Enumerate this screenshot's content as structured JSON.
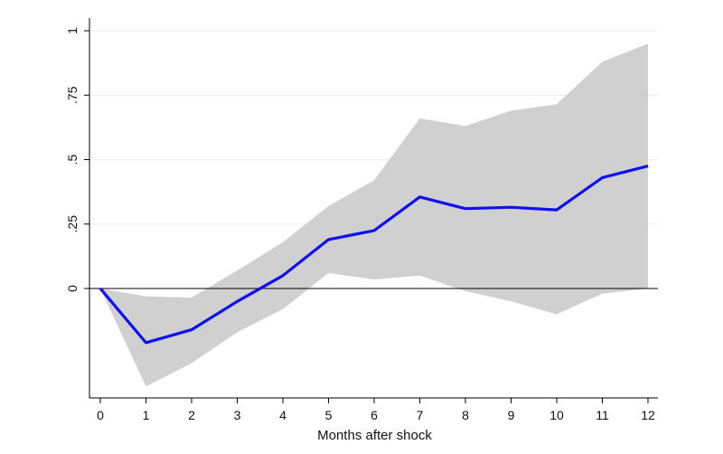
{
  "chart_data": {
    "type": "line",
    "title": "",
    "xlabel": "Months after shock",
    "ylabel": "",
    "x": [
      0,
      1,
      2,
      3,
      4,
      5,
      6,
      7,
      8,
      9,
      10,
      11,
      12
    ],
    "xlim": [
      0,
      12
    ],
    "ylim": [
      -0.43,
      1.05
    ],
    "x_ticks": [
      0,
      1,
      2,
      3,
      4,
      5,
      6,
      7,
      8,
      9,
      10,
      11,
      12
    ],
    "y_ticks": [
      0,
      0.25,
      0.5,
      0.75,
      1
    ],
    "y_tick_labels": [
      "0",
      ".25",
      ".5",
      ".75",
      "1"
    ],
    "series": [
      {
        "values": [
          0.0,
          -0.21,
          -0.16,
          -0.05,
          0.05,
          0.19,
          0.225,
          0.355,
          0.31,
          0.315,
          0.305,
          0.43,
          0.475
        ],
        "color": "#1010ee"
      }
    ],
    "band": {
      "lower": [
        0.0,
        -0.38,
        -0.29,
        -0.17,
        -0.08,
        0.06,
        0.035,
        0.05,
        -0.01,
        -0.05,
        -0.1,
        -0.02,
        0.0
      ],
      "upper": [
        0.0,
        -0.03,
        -0.035,
        0.07,
        0.18,
        0.32,
        0.42,
        0.66,
        0.63,
        0.69,
        0.715,
        0.88,
        0.95
      ],
      "color": "#d0d0d0"
    },
    "zero_line": 0,
    "grid": true,
    "legend": "none"
  }
}
